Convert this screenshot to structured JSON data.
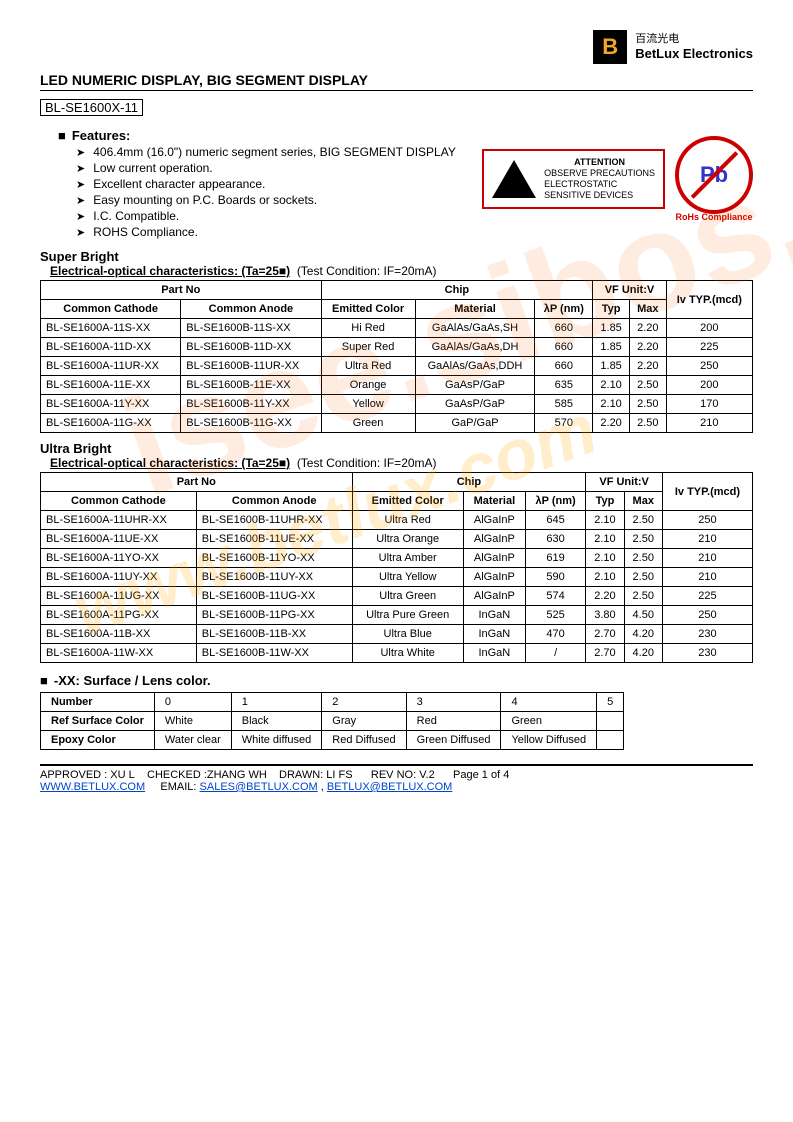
{
  "logo": {
    "cn": "百流光电",
    "en": "BetLux Electronics"
  },
  "title": "LED NUMERIC DISPLAY,   BIG SEGMENT DISPLAY",
  "partno": "BL-SE1600X-11",
  "features_header": "Features:",
  "features": [
    "406.4mm (16.0\") numeric segment series, BIG SEGMENT DISPLAY",
    "Low current operation.",
    "Excellent character appearance.",
    "Easy mounting on P.C. Boards or sockets.",
    "I.C. Compatible.",
    "ROHS Compliance."
  ],
  "esd": {
    "title": "ATTENTION",
    "l1": "OBSERVE PRECAUTIONS",
    "l2": "ELECTROSTATIC",
    "l3": "SENSITIVE DEVICES"
  },
  "rohs": {
    "pb": "Pb",
    "label": "RoHs Compliance"
  },
  "sb_header": "Super Bright",
  "eo_header": "Electrical-optical characteristics: (Ta=25■)",
  "test_cond": "(Test Condition: IF=20mA)",
  "cols": {
    "partno": "Part No",
    "cc": "Common Cathode",
    "ca": "Common Anode",
    "chip": "Chip",
    "ecolor": "Emitted Color",
    "material": "Material",
    "lambda": "λP (nm)",
    "vf": "VF Unit:V",
    "typ": "Typ",
    "max": "Max",
    "iv": "Iv TYP.(mcd)"
  },
  "sb_rows": [
    {
      "cc": "BL-SE1600A-11S-XX",
      "ca": "BL-SE1600B-11S-XX",
      "color": "Hi Red",
      "mat": "GaAlAs/GaAs,SH",
      "lp": "660",
      "typ": "1.85",
      "max": "2.20",
      "iv": "200"
    },
    {
      "cc": "BL-SE1600A-11D-XX",
      "ca": "BL-SE1600B-11D-XX",
      "color": "Super Red",
      "mat": "GaAlAs/GaAs,DH",
      "lp": "660",
      "typ": "1.85",
      "max": "2.20",
      "iv": "225"
    },
    {
      "cc": "BL-SE1600A-11UR-XX",
      "ca": "BL-SE1600B-11UR-XX",
      "color": "Ultra Red",
      "mat": "GaAlAs/GaAs,DDH",
      "lp": "660",
      "typ": "1.85",
      "max": "2.20",
      "iv": "250"
    },
    {
      "cc": "BL-SE1600A-11E-XX",
      "ca": "BL-SE1600B-11E-XX",
      "color": "Orange",
      "mat": "GaAsP/GaP",
      "lp": "635",
      "typ": "2.10",
      "max": "2.50",
      "iv": "200"
    },
    {
      "cc": "BL-SE1600A-11Y-XX",
      "ca": "BL-SE1600B-11Y-XX",
      "color": "Yellow",
      "mat": "GaAsP/GaP",
      "lp": "585",
      "typ": "2.10",
      "max": "2.50",
      "iv": "170"
    },
    {
      "cc": "BL-SE1600A-11G-XX",
      "ca": "BL-SE1600B-11G-XX",
      "color": "Green",
      "mat": "GaP/GaP",
      "lp": "570",
      "typ": "2.20",
      "max": "2.50",
      "iv": "210"
    }
  ],
  "ub_header": "Ultra Bright",
  "ub_rows": [
    {
      "cc": "BL-SE1600A-11UHR-XX",
      "ca": "BL-SE1600B-11UHR-XX",
      "color": "Ultra Red",
      "mat": "AlGaInP",
      "lp": "645",
      "typ": "2.10",
      "max": "2.50",
      "iv": "250"
    },
    {
      "cc": "BL-SE1600A-11UE-XX",
      "ca": "BL-SE1600B-11UE-XX",
      "color": "Ultra Orange",
      "mat": "AlGaInP",
      "lp": "630",
      "typ": "2.10",
      "max": "2.50",
      "iv": "210"
    },
    {
      "cc": "BL-SE1600A-11YO-XX",
      "ca": "BL-SE1600B-11YO-XX",
      "color": "Ultra Amber",
      "mat": "AlGaInP",
      "lp": "619",
      "typ": "2.10",
      "max": "2.50",
      "iv": "210"
    },
    {
      "cc": "BL-SE1600A-11UY-XX",
      "ca": "BL-SE1600B-11UY-XX",
      "color": "Ultra Yellow",
      "mat": "AlGaInP",
      "lp": "590",
      "typ": "2.10",
      "max": "2.50",
      "iv": "210"
    },
    {
      "cc": "BL-SE1600A-11UG-XX",
      "ca": "BL-SE1600B-11UG-XX",
      "color": "Ultra Green",
      "mat": "AlGaInP",
      "lp": "574",
      "typ": "2.20",
      "max": "2.50",
      "iv": "225"
    },
    {
      "cc": "BL-SE1600A-11PG-XX",
      "ca": "BL-SE1600B-11PG-XX",
      "color": "Ultra Pure Green",
      "mat": "InGaN",
      "lp": "525",
      "typ": "3.80",
      "max": "4.50",
      "iv": "250"
    },
    {
      "cc": "BL-SE1600A-11B-XX",
      "ca": "BL-SE1600B-11B-XX",
      "color": "Ultra Blue",
      "mat": "InGaN",
      "lp": "470",
      "typ": "2.70",
      "max": "4.20",
      "iv": "230"
    },
    {
      "cc": "BL-SE1600A-11W-XX",
      "ca": "BL-SE1600B-11W-XX",
      "color": "Ultra White",
      "mat": "InGaN",
      "lp": "/",
      "typ": "2.70",
      "max": "4.20",
      "iv": "230"
    }
  ],
  "lens_header": "-XX: Surface / Lens color.",
  "lens": {
    "r1": "Number",
    "r2": "Ref Surface Color",
    "r3": "Epoxy Color",
    "nums": [
      "0",
      "1",
      "2",
      "3",
      "4",
      "5"
    ],
    "surf": [
      "White",
      "Black",
      "Gray",
      "Red",
      "Green",
      ""
    ],
    "epoxy": [
      "Water clear",
      "White diffused",
      "Red Diffused",
      "Green Diffused",
      "Yellow Diffused",
      ""
    ]
  },
  "footer": {
    "approved": "APPROVED : XU L",
    "checked": "CHECKED :ZHANG WH",
    "drawn": "DRAWN: LI FS",
    "rev": "REV NO: V.2",
    "page": "Page 1 of 4",
    "site": "WWW.BETLUX.COM",
    "email_label": "EMAIL:",
    "email1": "SALES@BETLUX.COM",
    "email2": "BETLUX@BETLUX.COM"
  },
  "watermark1": "www.betlux.com",
  "watermark2": "isee.sibos.com"
}
